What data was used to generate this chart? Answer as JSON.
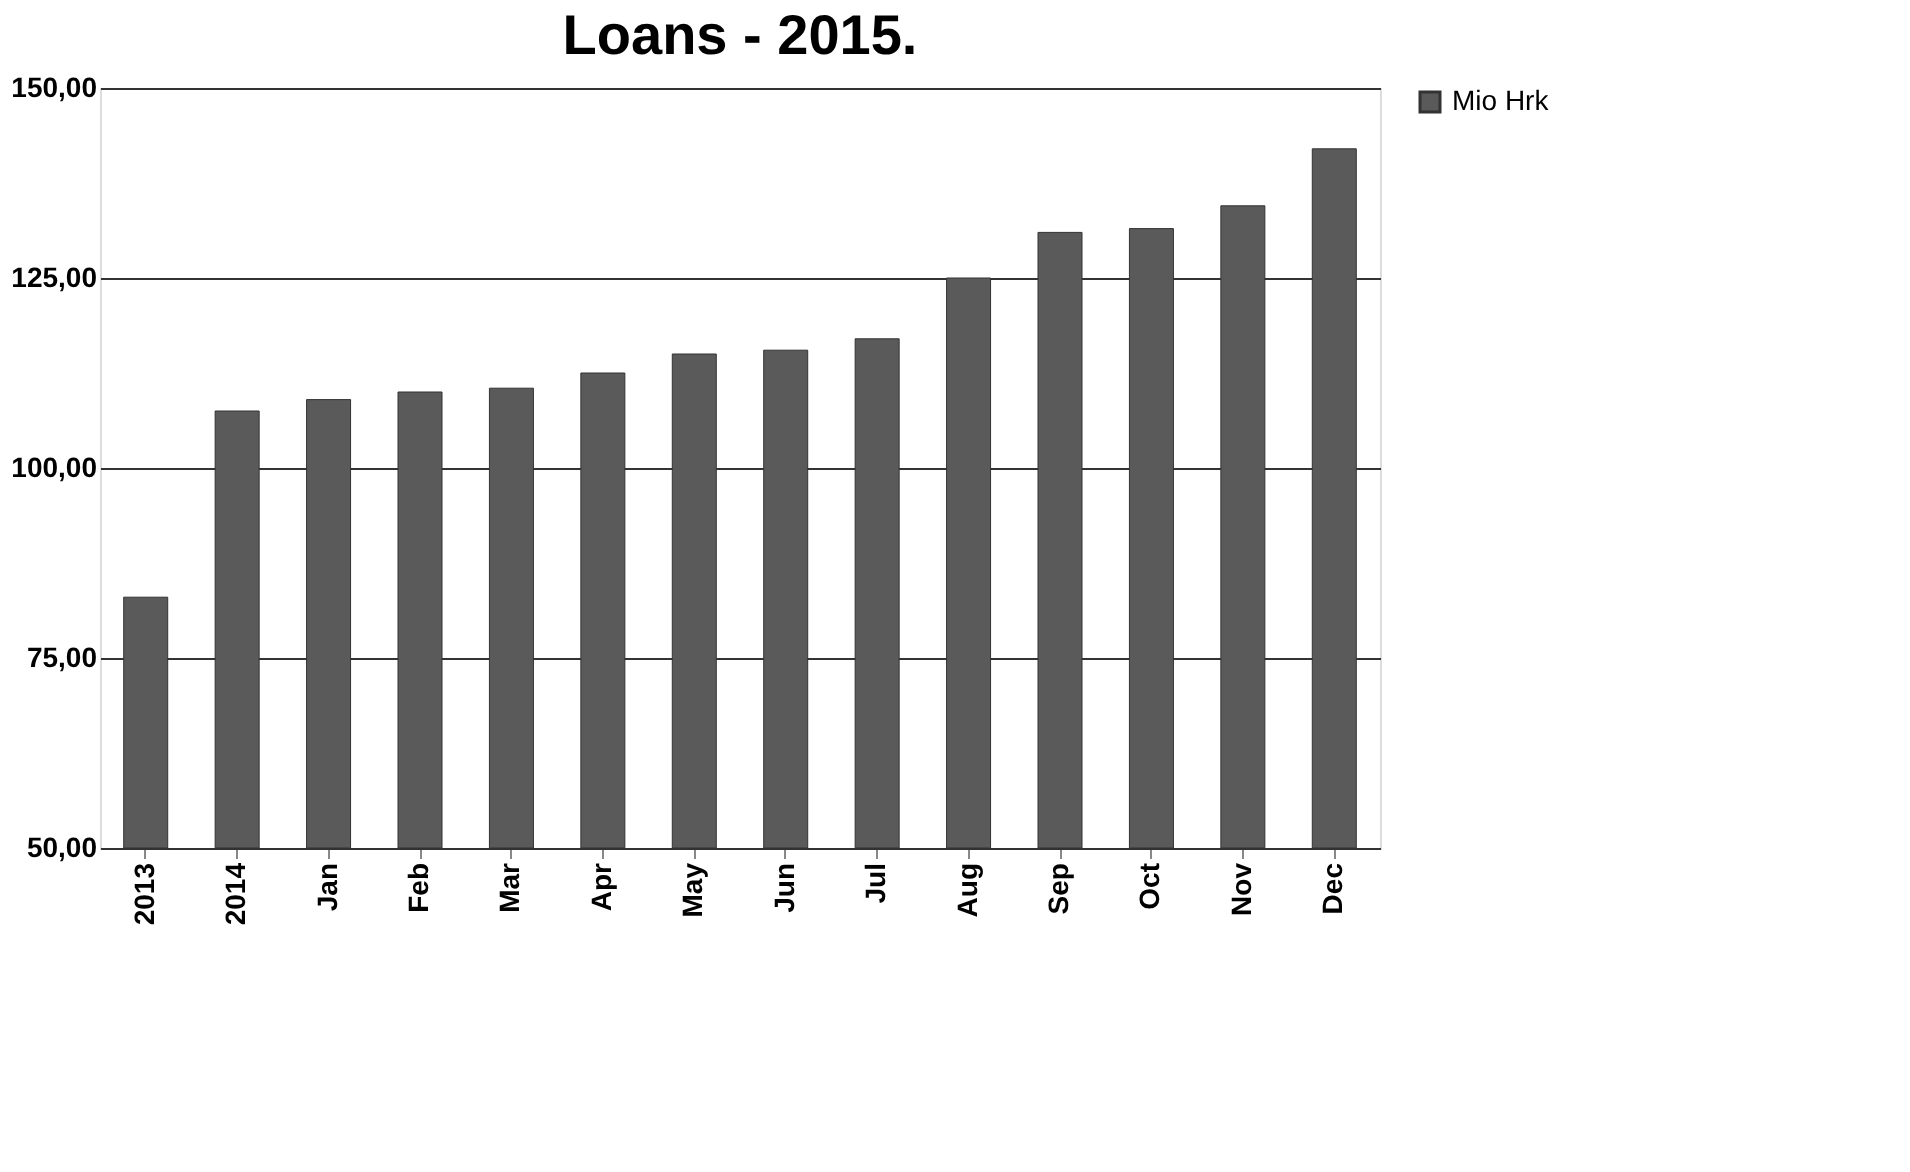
{
  "chart_data": {
    "type": "bar",
    "title": "Loans - 2015.",
    "categories": [
      "2013",
      "2014",
      "Jan",
      "Feb",
      "Mar",
      "Apr",
      "May",
      "Jun",
      "Jul",
      "Aug",
      "Sep",
      "Oct",
      "Nov",
      "Dec"
    ],
    "series": [
      {
        "name": "Mio Hrk",
        "color": "#5a5a5a",
        "values": [
          83,
          107.5,
          109,
          110,
          110.5,
          112.5,
          115,
          115.5,
          117,
          125,
          131,
          131.5,
          134.5,
          142
        ]
      }
    ],
    "ylim": [
      50,
      150
    ],
    "yticks": [
      {
        "value": 50,
        "label": "50,00"
      },
      {
        "value": 75,
        "label": "75,00"
      },
      {
        "value": 100,
        "label": "100,00"
      },
      {
        "value": 125,
        "label": "125,00"
      },
      {
        "value": 150,
        "label": "150,00"
      }
    ],
    "grid": "y",
    "legend": "right"
  }
}
